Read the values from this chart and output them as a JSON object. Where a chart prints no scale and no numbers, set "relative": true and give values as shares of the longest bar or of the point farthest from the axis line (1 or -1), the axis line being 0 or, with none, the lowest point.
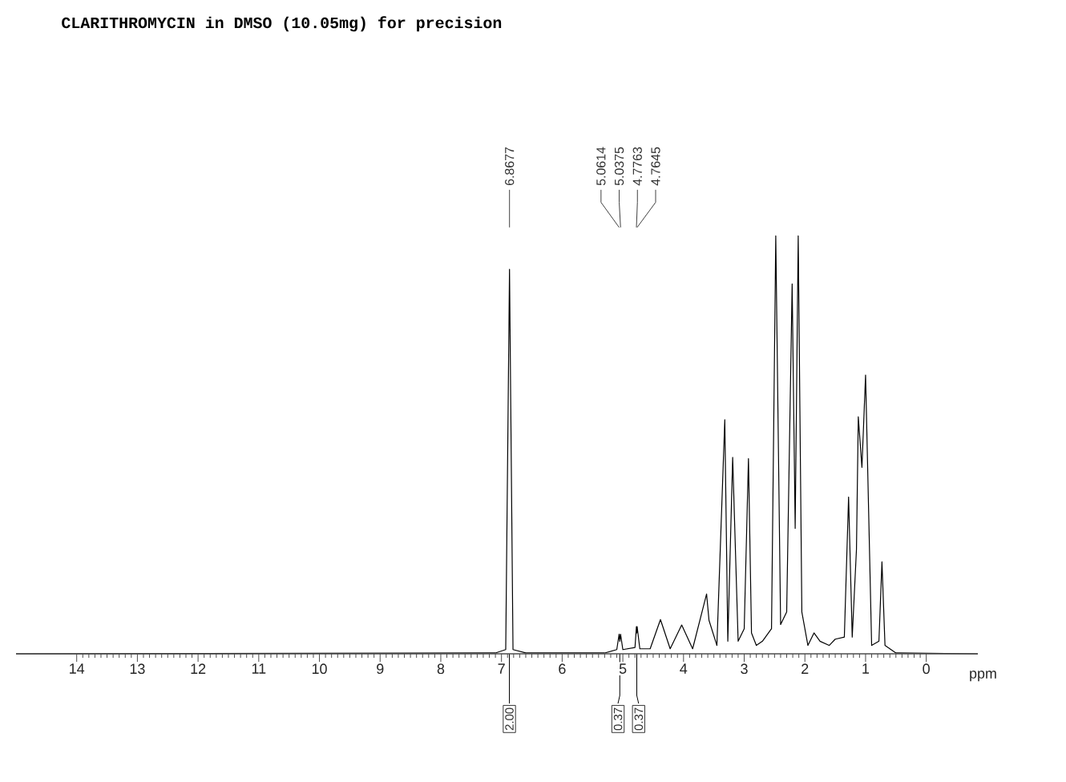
{
  "chart_data": {
    "type": "line",
    "title": "CLARITHROMYCIN in DMSO (10.05mg) for precision",
    "xlabel": "ppm",
    "relative": true,
    "marker": "none",
    "line_style": "solid",
    "xlim": [
      15,
      -0.85
    ],
    "xticks": [
      14,
      13,
      12,
      11,
      10,
      9,
      8,
      7,
      6,
      5,
      4,
      3,
      2,
      1,
      0
    ],
    "series": [
      {
        "color": "#000000",
        "x": [
          15.0,
          7.1,
          6.93,
          6.8677,
          6.81,
          6.6,
          5.3,
          5.1,
          5.0614,
          5.05,
          5.0375,
          5.0,
          4.8,
          4.7763,
          4.77,
          4.7645,
          4.72,
          4.55,
          4.38,
          4.22,
          4.03,
          3.85,
          3.62,
          3.58,
          3.45,
          3.32,
          3.27,
          3.19,
          3.1,
          3.0,
          2.93,
          2.88,
          2.8,
          2.7,
          2.55,
          2.48,
          2.4,
          2.3,
          2.21,
          2.16,
          2.11,
          2.05,
          1.95,
          1.85,
          1.75,
          1.6,
          1.5,
          1.35,
          1.28,
          1.22,
          1.15,
          1.12,
          1.06,
          1.0,
          0.9,
          0.78,
          0.73,
          0.68,
          0.5,
          -0.85
        ],
        "values": [
          0,
          0.002,
          0.01,
          0.92,
          0.01,
          0.002,
          0.002,
          0.01,
          0.047,
          0.03,
          0.047,
          0.01,
          0.015,
          0.065,
          0.05,
          0.065,
          0.012,
          0.012,
          0.082,
          0.012,
          0.069,
          0.012,
          0.143,
          0.08,
          0.02,
          0.56,
          0.03,
          0.47,
          0.03,
          0.06,
          0.467,
          0.05,
          0.02,
          0.03,
          0.06,
          1.0,
          0.07,
          0.1,
          0.885,
          0.3,
          1.0,
          0.1,
          0.02,
          0.05,
          0.03,
          0.02,
          0.035,
          0.04,
          0.375,
          0.04,
          0.25,
          0.567,
          0.446,
          0.667,
          0.02,
          0.03,
          0.22,
          0.02,
          0.002,
          0
        ]
      }
    ],
    "annotations": [
      {
        "text": "6.8677",
        "x": 6.8677
      },
      {
        "text": "5.0614",
        "x": 5.0614
      },
      {
        "text": "5.0375",
        "x": 5.0375
      },
      {
        "text": "4.7763",
        "x": 4.7763
      },
      {
        "text": "4.7645",
        "x": 4.7645
      },
      {
        "text": "2.00",
        "x": 6.87,
        "y": 0
      },
      {
        "text": "0.37",
        "x": 5.05,
        "y": 0
      },
      {
        "text": "0.37",
        "x": 4.77,
        "y": 0
      }
    ]
  }
}
